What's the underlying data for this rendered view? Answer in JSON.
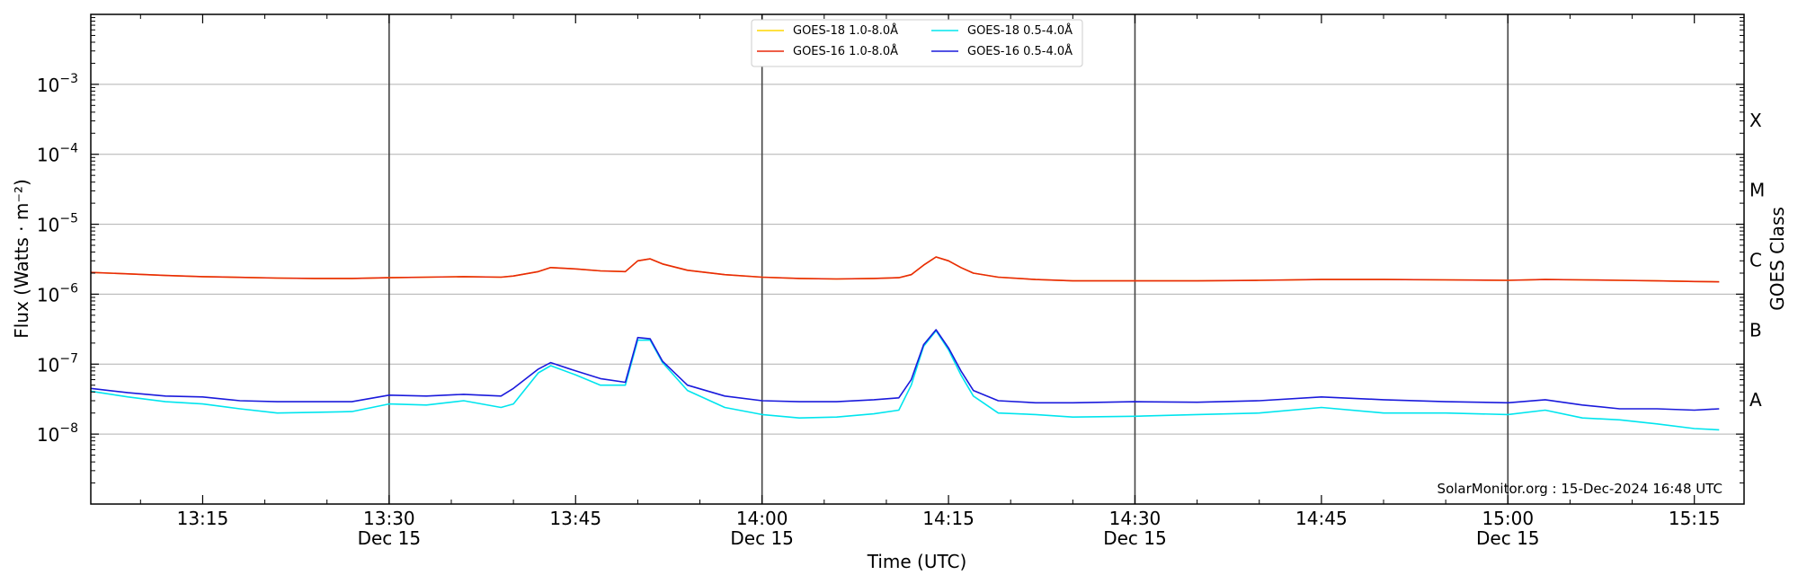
{
  "chart_data": {
    "type": "line",
    "title": "",
    "xlabel": "Time (UTC)",
    "ylabel": "Flux (Watts · m⁻²)",
    "ylabel_right": "GOES Class",
    "yscale": "log",
    "xlim": [
      "13:06",
      "15:19"
    ],
    "ylim": [
      1e-09,
      0.01
    ],
    "x_ticks": [
      {
        "time": "13:15",
        "label": "13:15",
        "date": ""
      },
      {
        "time": "13:30",
        "label": "13:30",
        "date": "Dec 15"
      },
      {
        "time": "13:45",
        "label": "13:45",
        "date": ""
      },
      {
        "time": "14:00",
        "label": "14:00",
        "date": "Dec 15"
      },
      {
        "time": "14:15",
        "label": "14:15",
        "date": ""
      },
      {
        "time": "14:30",
        "label": "14:30",
        "date": "Dec 15"
      },
      {
        "time": "14:45",
        "label": "14:45",
        "date": ""
      },
      {
        "time": "15:00",
        "label": "15:00",
        "date": "Dec 15"
      },
      {
        "time": "15:15",
        "label": "15:15",
        "date": ""
      }
    ],
    "y_ticks": [
      {
        "value": 1e-08,
        "base": "10",
        "exp": "−8"
      },
      {
        "value": 1e-07,
        "base": "10",
        "exp": "−7"
      },
      {
        "value": 1e-06,
        "base": "10",
        "exp": "−6"
      },
      {
        "value": 1e-05,
        "base": "10",
        "exp": "−5"
      },
      {
        "value": 0.0001,
        "base": "10",
        "exp": "−4"
      },
      {
        "value": 0.001,
        "base": "10",
        "exp": "−3"
      }
    ],
    "class_labels": [
      {
        "label": "A",
        "value": 3.16e-08
      },
      {
        "label": "B",
        "value": 3.16e-07
      },
      {
        "label": "C",
        "value": 3.16e-06
      },
      {
        "label": "M",
        "value": 3.16e-05
      },
      {
        "label": "X",
        "value": 0.000316
      }
    ],
    "grid": "horizontal at decades",
    "day_separators": [
      "13:30",
      "14:00",
      "14:30",
      "15:00"
    ],
    "legend_position": "top-center",
    "annotation": "SolarMonitor.org : 15-Dec-2024 16:48 UTC",
    "x": [
      "13:06",
      "13:09",
      "13:12",
      "13:15",
      "13:18",
      "13:21",
      "13:24",
      "13:27",
      "13:30",
      "13:33",
      "13:36",
      "13:39",
      "13:40",
      "13:42",
      "13:43",
      "13:45",
      "13:47",
      "13:49",
      "13:50",
      "13:51",
      "13:52",
      "13:54",
      "13:57",
      "14:00",
      "14:03",
      "14:06",
      "14:09",
      "14:11",
      "14:12",
      "14:13",
      "14:14",
      "14:15",
      "14:16",
      "14:17",
      "14:19",
      "14:22",
      "14:25",
      "14:30",
      "14:35",
      "14:40",
      "14:45",
      "14:50",
      "14:55",
      "15:00",
      "15:03",
      "15:06",
      "15:09",
      "15:12",
      "15:15",
      "15:17"
    ],
    "series": [
      {
        "name": "GOES-18 1.0-8.0Å",
        "color": "#ffd700",
        "values": [
          2.05e-06,
          1.95e-06,
          1.85e-06,
          1.78e-06,
          1.74e-06,
          1.7e-06,
          1.68e-06,
          1.68e-06,
          1.72e-06,
          1.75e-06,
          1.78e-06,
          1.75e-06,
          1.82e-06,
          2.1e-06,
          2.4e-06,
          2.3e-06,
          2.15e-06,
          2.1e-06,
          3e-06,
          3.2e-06,
          2.7e-06,
          2.2e-06,
          1.9e-06,
          1.75e-06,
          1.68e-06,
          1.65e-06,
          1.68e-06,
          1.72e-06,
          1.9e-06,
          2.6e-06,
          3.4e-06,
          3e-06,
          2.4e-06,
          2e-06,
          1.75e-06,
          1.62e-06,
          1.55e-06,
          1.55e-06,
          1.55e-06,
          1.58e-06,
          1.62e-06,
          1.62e-06,
          1.6e-06,
          1.58e-06,
          1.62e-06,
          1.6e-06,
          1.58e-06,
          1.55e-06,
          1.52e-06,
          1.5e-06
        ]
      },
      {
        "name": "GOES-16 1.0-8.0Å",
        "color": "#e8280c",
        "values": [
          2.05e-06,
          1.95e-06,
          1.85e-06,
          1.78e-06,
          1.74e-06,
          1.7e-06,
          1.68e-06,
          1.68e-06,
          1.72e-06,
          1.75e-06,
          1.78e-06,
          1.75e-06,
          1.82e-06,
          2.1e-06,
          2.4e-06,
          2.3e-06,
          2.15e-06,
          2.1e-06,
          3e-06,
          3.2e-06,
          2.7e-06,
          2.2e-06,
          1.9e-06,
          1.75e-06,
          1.68e-06,
          1.65e-06,
          1.68e-06,
          1.72e-06,
          1.9e-06,
          2.6e-06,
          3.4e-06,
          3e-06,
          2.4e-06,
          2e-06,
          1.75e-06,
          1.62e-06,
          1.55e-06,
          1.55e-06,
          1.55e-06,
          1.58e-06,
          1.62e-06,
          1.62e-06,
          1.6e-06,
          1.58e-06,
          1.62e-06,
          1.6e-06,
          1.58e-06,
          1.55e-06,
          1.52e-06,
          1.5e-06
        ]
      },
      {
        "name": "GOES-18 0.5-4.0Å",
        "color": "#00e5ee",
        "values": [
          4.1e-08,
          3.4e-08,
          2.9e-08,
          2.7e-08,
          2.3e-08,
          2e-08,
          2.05e-08,
          2.1e-08,
          2.7e-08,
          2.6e-08,
          3e-08,
          2.4e-08,
          2.7e-08,
          7.5e-08,
          9.5e-08,
          7e-08,
          5e-08,
          5e-08,
          2.2e-07,
          2.2e-07,
          1.05e-07,
          4.2e-08,
          2.4e-08,
          1.9e-08,
          1.7e-08,
          1.75e-08,
          1.95e-08,
          2.2e-08,
          5e-08,
          1.8e-07,
          3e-07,
          1.6e-07,
          7e-08,
          3.5e-08,
          2e-08,
          1.9e-08,
          1.75e-08,
          1.8e-08,
          1.9e-08,
          2e-08,
          2.4e-08,
          2e-08,
          2e-08,
          1.9e-08,
          2.2e-08,
          1.7e-08,
          1.6e-08,
          1.4e-08,
          1.2e-08,
          1.15e-08
        ]
      },
      {
        "name": "GOES-16 0.5-4.0Å",
        "color": "#1a1adc",
        "values": [
          4.5e-08,
          3.9e-08,
          3.5e-08,
          3.4e-08,
          3e-08,
          2.9e-08,
          2.9e-08,
          2.9e-08,
          3.6e-08,
          3.5e-08,
          3.7e-08,
          3.5e-08,
          4.5e-08,
          8.5e-08,
          1.05e-07,
          8e-08,
          6.2e-08,
          5.5e-08,
          2.4e-07,
          2.3e-07,
          1.1e-07,
          5e-08,
          3.5e-08,
          3e-08,
          2.9e-08,
          2.9e-08,
          3.1e-08,
          3.3e-08,
          6e-08,
          1.9e-07,
          3.1e-07,
          1.7e-07,
          8e-08,
          4.2e-08,
          3e-08,
          2.8e-08,
          2.8e-08,
          2.9e-08,
          2.85e-08,
          3e-08,
          3.4e-08,
          3.1e-08,
          2.9e-08,
          2.8e-08,
          3.1e-08,
          2.6e-08,
          2.3e-08,
          2.3e-08,
          2.2e-08,
          2.3e-08
        ]
      }
    ],
    "legend_order": [
      0,
      2,
      1,
      3
    ]
  }
}
